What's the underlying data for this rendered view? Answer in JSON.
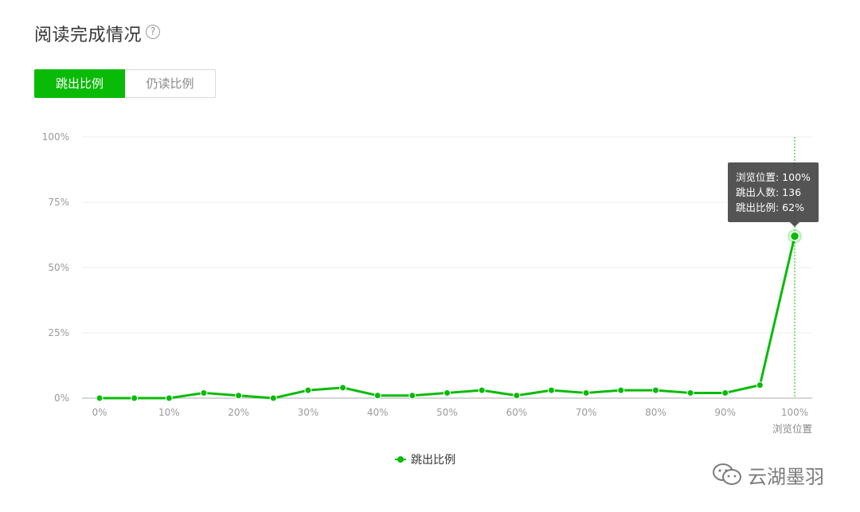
{
  "page": {
    "title": "阅读完成情况",
    "help_glyph": "?"
  },
  "tabs": [
    {
      "label": "跳出比例",
      "active": true
    },
    {
      "label": "仍读比例",
      "active": false
    }
  ],
  "colors": {
    "accent": "#09bb07",
    "grid": "#ececec",
    "axis": "#c8c8c8",
    "tooltip_bg": "#3c3c3c"
  },
  "tooltip": {
    "lines": [
      "浏览位置: 100%",
      "跳出人数: 136",
      "跳出比例: 62%"
    ]
  },
  "watermark": {
    "text": "云湖墨羽",
    "icon": "wechat-icon"
  },
  "chart_data": {
    "type": "line",
    "x": [
      0,
      5,
      10,
      15,
      20,
      25,
      30,
      35,
      40,
      45,
      50,
      55,
      60,
      65,
      70,
      75,
      80,
      85,
      90,
      95,
      100
    ],
    "series": [
      {
        "name": "跳出比例",
        "values": [
          0,
          0,
          0,
          2,
          1,
          0,
          3,
          4,
          1,
          1,
          2,
          3,
          1,
          3,
          2,
          3,
          3,
          2,
          2,
          5,
          62
        ]
      }
    ],
    "x_ticks": [
      0,
      10,
      20,
      30,
      40,
      50,
      60,
      70,
      80,
      90,
      100
    ],
    "x_tick_labels": [
      "0%",
      "10%",
      "20%",
      "30%",
      "40%",
      "50%",
      "60%",
      "70%",
      "80%",
      "90%",
      "100%"
    ],
    "y_ticks": [
      0,
      25,
      50,
      75,
      100
    ],
    "y_tick_labels": [
      "0%",
      "25%",
      "50%",
      "75%",
      "100%"
    ],
    "xlabel": "浏览位置",
    "ylabel": "",
    "xlim": [
      0,
      100
    ],
    "ylim": [
      0,
      100
    ],
    "grid": true,
    "legend_position": "bottom-center",
    "highlighted_x": 100
  }
}
